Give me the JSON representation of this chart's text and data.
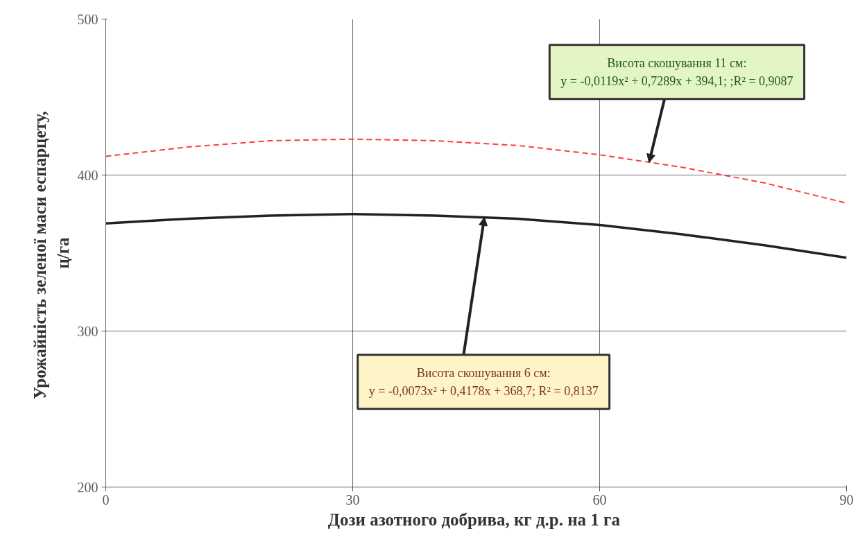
{
  "chart_data": {
    "type": "line",
    "xlabel": "Дози азотного  добрива, кг д.р. на 1 га",
    "ylabel": "Урожайність  зеленої маси еспарцету,\nц/га",
    "x": [
      0,
      10,
      20,
      30,
      40,
      50,
      60,
      70,
      80,
      90
    ],
    "series": [
      {
        "color": "#ff3b3b",
        "line_style": "dashed",
        "values": [
          412,
          418,
          422,
          423,
          422,
          419,
          413,
          405,
          395,
          382
        ]
      },
      {
        "color": "#222222",
        "line_style": "solid",
        "values": [
          369,
          372,
          374,
          375,
          374,
          372,
          368,
          362,
          355,
          347
        ]
      }
    ],
    "xlim": [
      0,
      90
    ],
    "xticks": [
      0,
      30,
      60,
      90
    ],
    "ylim": [
      200,
      500
    ],
    "yticks": [
      200,
      300,
      400,
      500
    ],
    "grid": true,
    "annotations": [
      {
        "text": "Висота скошування 11 см:\ny = -0,0119x² + 0,7289x + 394,1; ;R² = 0,9087",
        "x": 66,
        "y": 408
      },
      {
        "text": "Висота скошування 6 см:\ny = -0,0073x² + 0,4178x + 368,7; R² = 0,8137",
        "x": 46,
        "y": 373
      }
    ]
  }
}
